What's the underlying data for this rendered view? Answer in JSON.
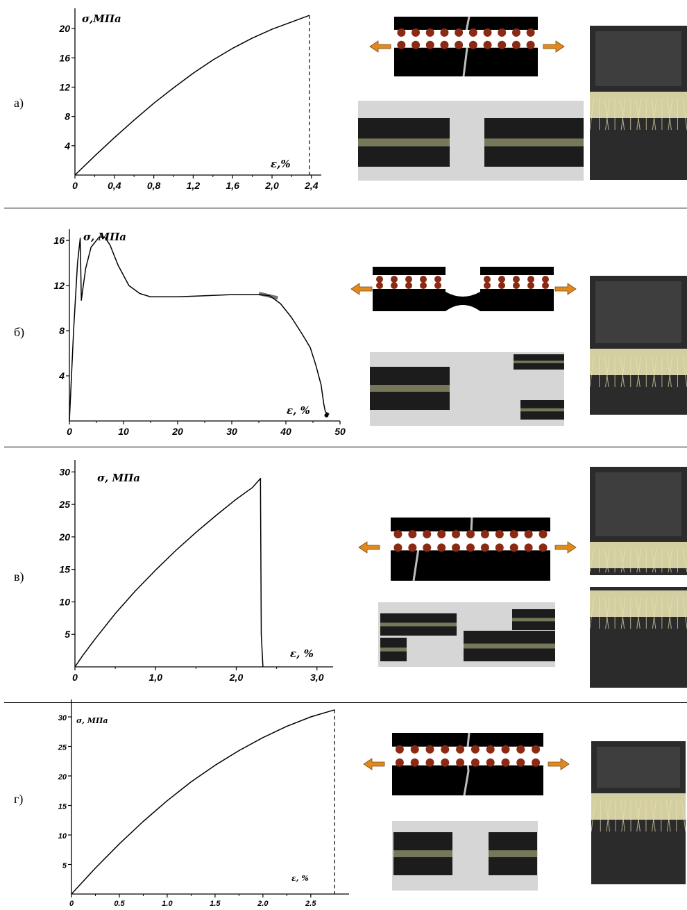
{
  "panels": [
    {
      "label": "а)",
      "ylabel": "σ,МПа",
      "xlabel": "ε,%",
      "xticks": [
        "0",
        "0,4",
        "0,8",
        "1,2",
        "1,6",
        "2,0",
        "2,4"
      ],
      "yticks": [
        "4",
        "8",
        "12",
        "16",
        "20"
      ]
    },
    {
      "label": "б)",
      "ylabel": "σ, МПа",
      "xlabel": "ε, %",
      "xticks": [
        "0",
        "10",
        "20",
        "30",
        "40",
        "50"
      ],
      "yticks": [
        "4",
        "8",
        "12",
        "16"
      ]
    },
    {
      "label": "в)",
      "ylabel": "σ, МПа",
      "xlabel": "ε, %",
      "xticks": [
        "0",
        "1,0",
        "2,0",
        "3,0"
      ],
      "yticks": [
        "5",
        "10",
        "15",
        "20",
        "25",
        "30"
      ]
    },
    {
      "label": "г)",
      "ylabel": "σ, МПа",
      "xlabel": "ε, %",
      "xticks": [
        "0",
        "0.5",
        "1.0",
        "1.5",
        "2.0",
        "2.5"
      ],
      "yticks": [
        "5",
        "10",
        "15",
        "20",
        "25",
        "30"
      ]
    }
  ],
  "colors": {
    "matrix": "#000000",
    "fiber": "#8b2a14",
    "arrow": "#e08a1e",
    "photo_bg": "#d6d6d6",
    "fiber_glow": "#f2ecb8"
  },
  "chart_data": [
    {
      "type": "line",
      "ylabel": "σ,МПа",
      "xlabel": "ε,%",
      "xlim": [
        0,
        2.5
      ],
      "ylim": [
        0,
        22
      ],
      "x": [
        0,
        0.2,
        0.4,
        0.6,
        0.8,
        1.0,
        1.2,
        1.4,
        1.6,
        1.8,
        2.0,
        2.2,
        2.38
      ],
      "y": [
        0,
        2.6,
        5.1,
        7.5,
        9.8,
        11.9,
        13.9,
        15.7,
        17.3,
        18.7,
        19.9,
        20.9,
        21.8
      ],
      "failure_strain": 2.38
    },
    {
      "type": "line",
      "ylabel": "σ, МПа",
      "xlabel": "ε, %",
      "xlim": [
        0,
        50
      ],
      "ylim": [
        0,
        16.5
      ],
      "x": [
        0,
        0.8,
        1.5,
        2.0,
        2.2,
        3.0,
        4.0,
        5.5,
        6.5,
        7.5,
        9.0,
        11.0,
        13.0,
        15.0,
        20.0,
        25.0,
        30.0,
        35.0,
        37.0,
        39.0,
        41.0,
        43.0,
        44.5,
        45.5,
        46.5,
        47.0,
        47.3,
        48.0
      ],
      "y": [
        0,
        8.2,
        14.0,
        16.2,
        10.7,
        13.5,
        15.4,
        16.3,
        16.3,
        15.6,
        13.8,
        12.0,
        11.3,
        11.0,
        11.0,
        11.1,
        11.2,
        11.2,
        11.1,
        10.4,
        9.2,
        7.7,
        6.5,
        5.0,
        3.2,
        1.5,
        0.8,
        0.6
      ]
    },
    {
      "type": "line",
      "ylabel": "σ, МПа",
      "xlabel": "ε, %",
      "xlim": [
        0,
        3.2
      ],
      "ylim": [
        0,
        31
      ],
      "x": [
        0,
        0.1,
        0.25,
        0.5,
        0.75,
        1.0,
        1.25,
        1.5,
        1.75,
        2.0,
        2.2,
        2.3,
        2.3,
        2.31,
        2.33
      ],
      "y": [
        0,
        1.8,
        4.3,
        8.2,
        11.7,
        14.9,
        17.9,
        20.7,
        23.3,
        25.8,
        27.6,
        29.0,
        27.5,
        5.0,
        0
      ],
      "failure_strain": 2.3
    },
    {
      "type": "line",
      "ylabel": "σ, МПа",
      "xlabel": "ε, %",
      "xlim": [
        0,
        2.9
      ],
      "ylim": [
        0,
        32
      ],
      "x": [
        0,
        0.25,
        0.5,
        0.75,
        1.0,
        1.25,
        1.5,
        1.75,
        2.0,
        2.25,
        2.5,
        2.75
      ],
      "y": [
        0,
        4.4,
        8.5,
        12.3,
        15.8,
        19.0,
        21.8,
        24.3,
        26.5,
        28.4,
        30.0,
        31.2
      ],
      "failure_strain": 2.75
    }
  ]
}
